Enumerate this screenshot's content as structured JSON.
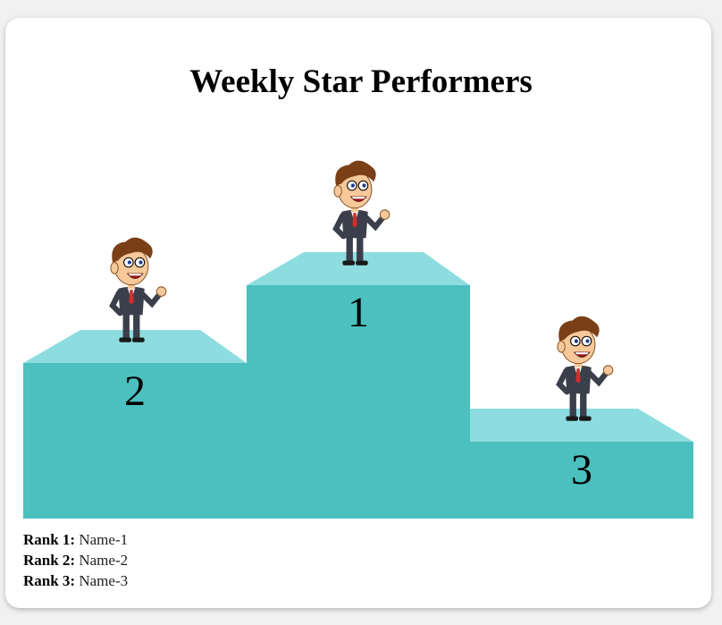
{
  "title": "Weekly Star Performers",
  "podium": {
    "first": "1",
    "second": "2",
    "third": "3"
  },
  "ranks": [
    {
      "label": "Rank 1:",
      "name": "Name-1"
    },
    {
      "label": "Rank 2:",
      "name": "Name-2"
    },
    {
      "label": "Rank 3:",
      "name": "Name-3"
    }
  ],
  "colors": {
    "podium_front": "#4bc0be",
    "podium_top": "#8ddde0"
  },
  "icons": [
    "cartoon-businessman-icon"
  ]
}
